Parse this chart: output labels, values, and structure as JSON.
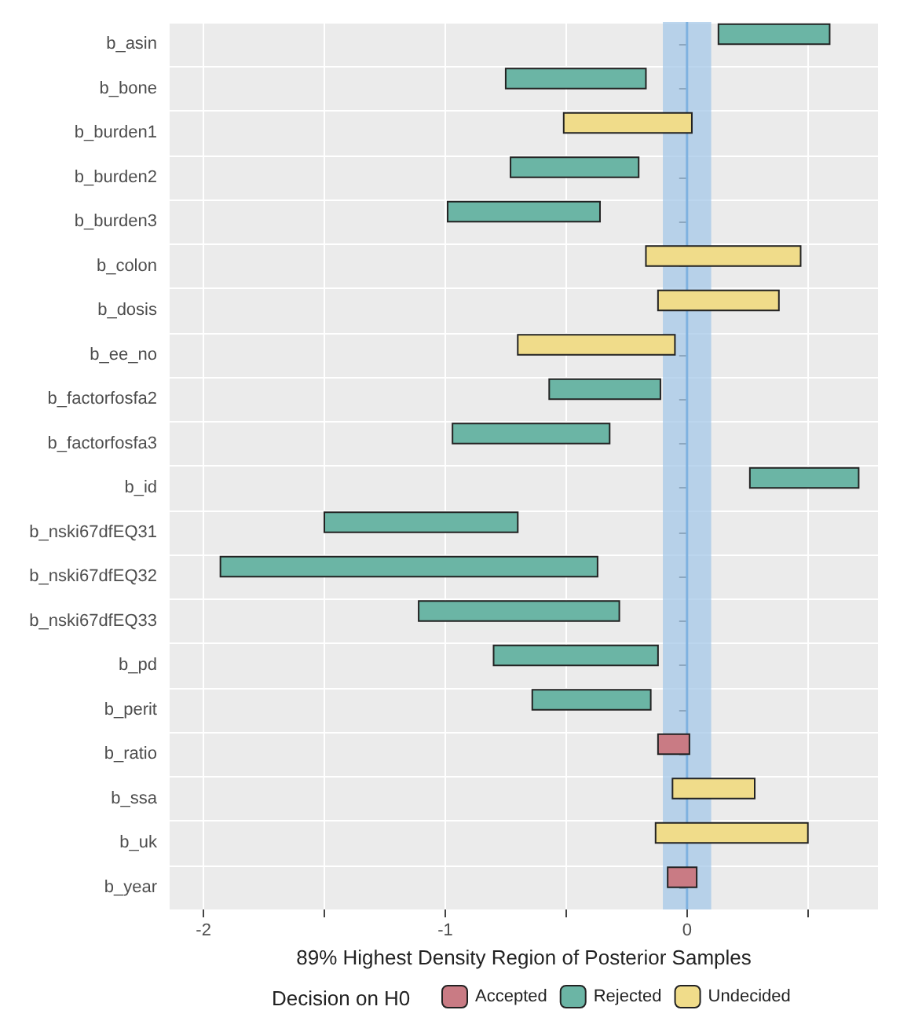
{
  "chart_data": {
    "type": "bar",
    "orientation": "horizontal",
    "xlabel": "89% Highest Density Region of Posterior Samples",
    "legend_title": "Decision on H0",
    "legend": "bottom",
    "grid": true,
    "categories": [
      "b_asin",
      "b_bone",
      "b_burden1",
      "b_burden2",
      "b_burden3",
      "b_colon",
      "b_dosis",
      "b_ee_no",
      "b_factorfosfa2",
      "b_factorfosfa3",
      "b_id",
      "b_nski67dfEQ31",
      "b_nski67dfEQ32",
      "b_nski67dfEQ33",
      "b_pd",
      "b_perit",
      "b_ratio",
      "b_ssa",
      "b_uk",
      "b_year"
    ],
    "series": [
      {
        "name": "Accepted",
        "color": "#c97b84",
        "values": [
          null,
          null,
          null,
          null,
          null,
          null,
          null,
          null,
          null,
          null,
          null,
          null,
          null,
          null,
          null,
          null,
          0.13,
          null,
          null,
          0.12
        ],
        "base": [
          null,
          null,
          null,
          null,
          null,
          null,
          null,
          null,
          null,
          null,
          null,
          null,
          null,
          null,
          null,
          null,
          -0.12,
          null,
          null,
          -0.08
        ]
      },
      {
        "name": "Rejected",
        "color": "#6bb5a5",
        "values": [
          0.46,
          0.58,
          null,
          0.53,
          0.63,
          null,
          null,
          null,
          0.46,
          0.65,
          0.45,
          0.8,
          1.56,
          0.83,
          0.68,
          0.49,
          null,
          null,
          null,
          null
        ],
        "base": [
          0.13,
          -0.75,
          null,
          -0.73,
          -0.99,
          null,
          null,
          null,
          -0.57,
          -0.97,
          0.26,
          -1.5,
          -1.93,
          -1.11,
          -0.8,
          -0.64,
          null,
          null,
          null,
          null
        ]
      },
      {
        "name": "Undecided",
        "color": "#f0dc8a",
        "values": [
          null,
          null,
          0.53,
          null,
          null,
          0.64,
          0.5,
          0.65,
          null,
          null,
          null,
          null,
          null,
          null,
          null,
          null,
          null,
          0.34,
          0.63,
          null
        ],
        "base": [
          null,
          null,
          -0.51,
          null,
          null,
          -0.17,
          -0.12,
          -0.7,
          null,
          null,
          null,
          null,
          null,
          null,
          null,
          null,
          null,
          -0.06,
          -0.13,
          null
        ]
      }
    ],
    "xlim": [
      -2.14,
      0.79
    ],
    "xticks": [
      -2,
      {
        "value": -1.5,
        "label": null
      },
      -1,
      {
        "value": -0.5,
        "label": null
      },
      0,
      {
        "value": 0.5,
        "label": null
      }
    ],
    "bands": [
      {
        "axis": "x",
        "from": -0.1,
        "to": 0.1,
        "color": "#a6c8e8"
      }
    ],
    "ref_lines": [
      {
        "axis": "x",
        "value": 0,
        "color": "#7fb2e0"
      }
    ]
  }
}
